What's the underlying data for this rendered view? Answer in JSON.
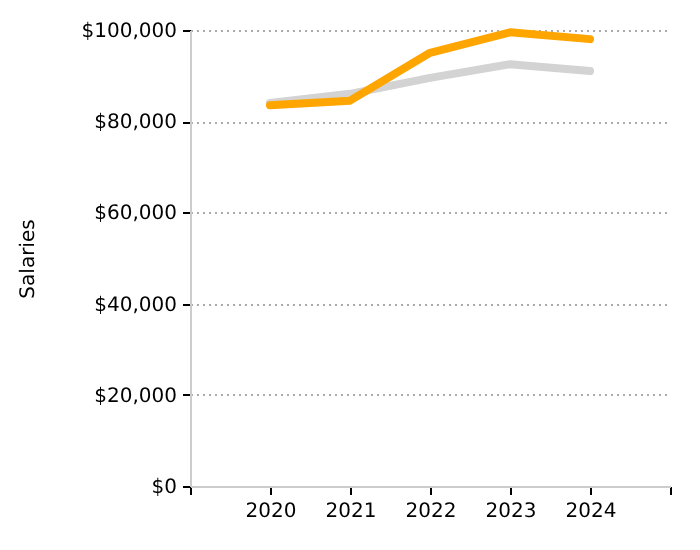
{
  "chart_data": {
    "type": "line",
    "ylabel": "Salaries",
    "x": [
      2020,
      2021,
      2022,
      2023,
      2024
    ],
    "series": [
      {
        "color": "#d3d3d3",
        "values": [
          84000,
          86000,
          89500,
          92500,
          91000
        ]
      },
      {
        "color": "#ffa500",
        "values": [
          83500,
          84500,
          95000,
          99500,
          98000
        ]
      }
    ],
    "xlim": [
      2019,
      2025
    ],
    "xticks": [
      {
        "value": 2019,
        "label": null
      },
      2020,
      2021,
      2022,
      2023,
      2024,
      {
        "value": 2025,
        "label": null
      }
    ],
    "ylim": [
      0,
      100000
    ],
    "yticks": [
      {
        "value": 0,
        "label": "$0"
      },
      {
        "value": 20000,
        "label": "$20,000"
      },
      {
        "value": 40000,
        "label": "$40,000"
      },
      {
        "value": 60000,
        "label": "$60,000"
      },
      {
        "value": 80000,
        "label": "$80,000"
      },
      {
        "value": 100000,
        "label": "$100,000"
      }
    ],
    "grid": "y",
    "marker": "none",
    "line_style": "solid"
  }
}
